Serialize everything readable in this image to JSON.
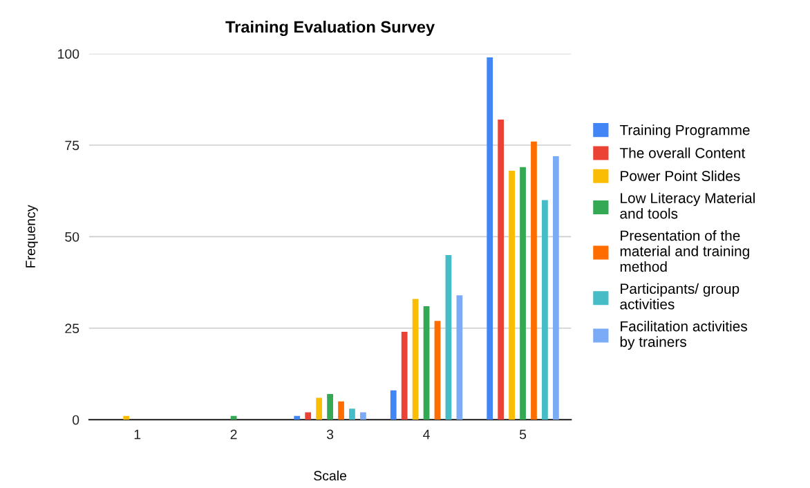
{
  "chart_data": {
    "type": "bar",
    "title": "Training Evaluation Survey",
    "xlabel": "Scale",
    "ylabel": "Frequency",
    "categories": [
      "1",
      "2",
      "3",
      "4",
      "5"
    ],
    "series": [
      {
        "name": "Training Programme",
        "color": "#4285f4",
        "values": [
          0,
          0,
          1,
          8,
          99
        ]
      },
      {
        "name": "The overall Content",
        "color": "#ea4335",
        "values": [
          0,
          0,
          2,
          24,
          82
        ]
      },
      {
        "name": "Power Point Slides",
        "color": "#fbbc04",
        "values": [
          1,
          0,
          6,
          33,
          68
        ]
      },
      {
        "name": "Low Literacy Material and tools",
        "color": "#34a853",
        "values": [
          0,
          1,
          7,
          31,
          69
        ]
      },
      {
        "name": "Presentation of the material and training method",
        "color": "#ff6d01",
        "values": [
          0,
          0,
          5,
          27,
          76
        ]
      },
      {
        "name": "Participants/ group activities",
        "color": "#46bdc6",
        "values": [
          0,
          0,
          3,
          45,
          60
        ]
      },
      {
        "name": "Facilitation activities by trainers",
        "color": "#7baaf7",
        "values": [
          0,
          0,
          2,
          34,
          72
        ]
      }
    ],
    "ylim": [
      0,
      100
    ],
    "yticks": [
      0,
      25,
      50,
      75,
      100
    ],
    "grid": "y",
    "legend": "right"
  }
}
